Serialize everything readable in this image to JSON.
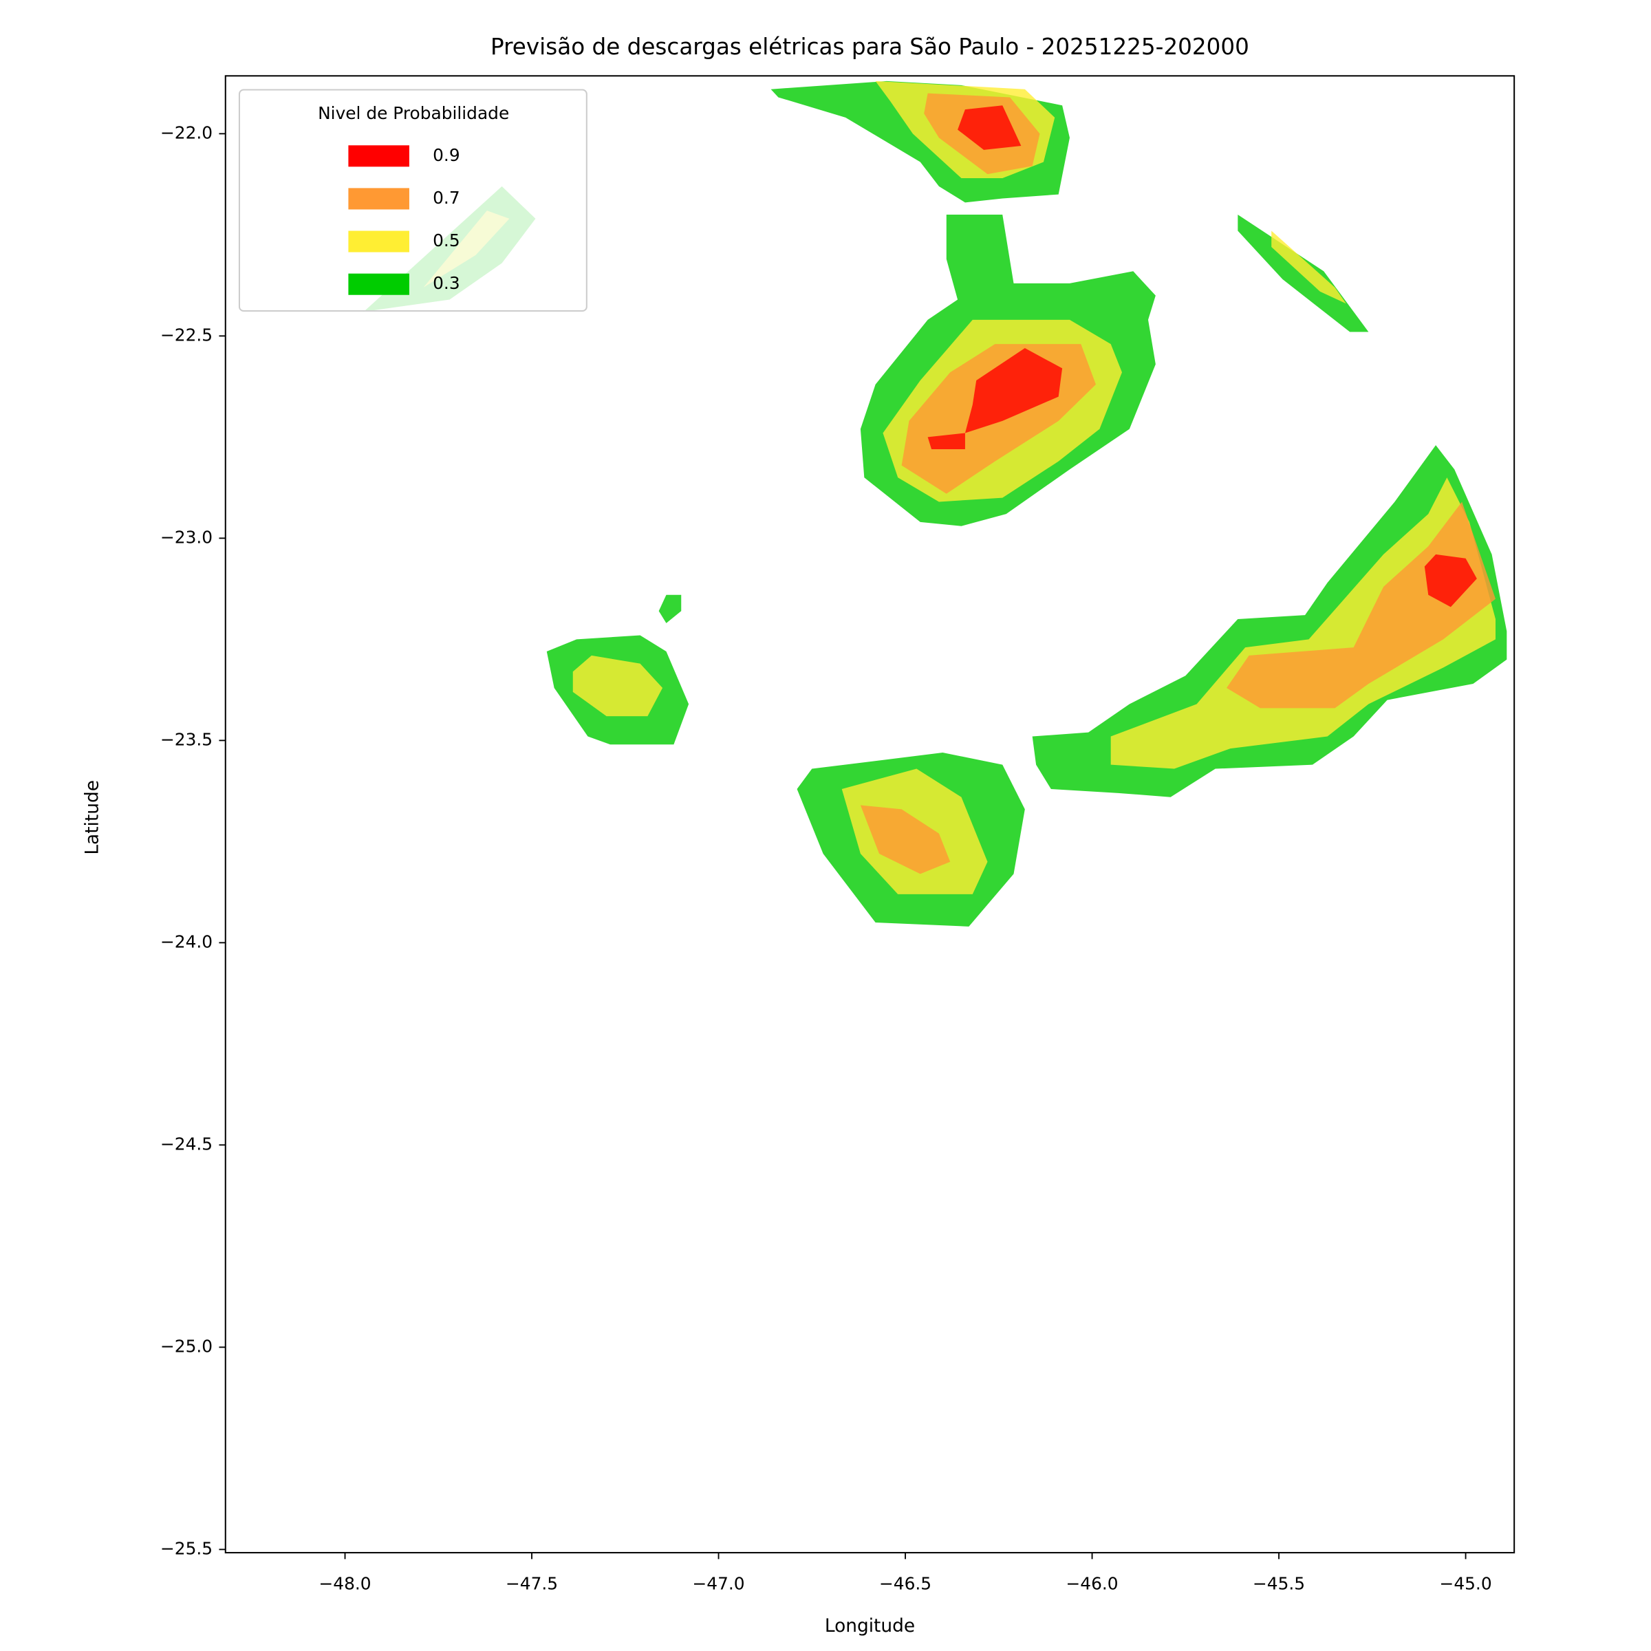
{
  "chart_data": {
    "type": "contour",
    "title": "Previsão de descargas elétricas para São Paulo - 20251225-202000",
    "xlabel": "Longitude",
    "ylabel": "Latitude",
    "xlim": [
      -48.32,
      -44.87
    ],
    "ylim": [
      -25.508,
      -21.857
    ],
    "xticks": [
      {
        "value": -48.0,
        "label": "−48.0"
      },
      {
        "value": -47.5,
        "label": "−47.5"
      },
      {
        "value": -47.0,
        "label": "−47.0"
      },
      {
        "value": -46.5,
        "label": "−46.5"
      },
      {
        "value": -46.0,
        "label": "−46.0"
      },
      {
        "value": -45.5,
        "label": "−45.5"
      },
      {
        "value": -45.0,
        "label": "−45.0"
      }
    ],
    "yticks": [
      {
        "value": -22.0,
        "label": "−22.0"
      },
      {
        "value": -22.5,
        "label": "−22.5"
      },
      {
        "value": -23.0,
        "label": "−23.0"
      },
      {
        "value": -23.5,
        "label": "−23.5"
      },
      {
        "value": -24.0,
        "label": "−24.0"
      },
      {
        "value": -24.5,
        "label": "−24.5"
      },
      {
        "value": -25.0,
        "label": "−25.0"
      },
      {
        "value": -25.5,
        "label": "−25.5"
      }
    ],
    "legend": {
      "title": "Nivel de Probabilidade",
      "levels": [
        0.9,
        0.7,
        0.5,
        0.3
      ],
      "colors": [
        "#ff0000",
        "#ff9933",
        "#ffee33",
        "#00cc00"
      ],
      "location": "upper left"
    },
    "regions": [
      {
        "level": 0.3,
        "polygon": [
          [
            -47.95,
            -22.44
          ],
          [
            -47.58,
            -22.13
          ],
          [
            -47.49,
            -22.21
          ],
          [
            -47.58,
            -22.32
          ],
          [
            -47.72,
            -22.41
          ]
        ]
      },
      {
        "level": 0.5,
        "polygon": [
          [
            -47.79,
            -22.38
          ],
          [
            -47.62,
            -22.19
          ],
          [
            -47.56,
            -22.21
          ],
          [
            -47.65,
            -22.3
          ]
        ]
      },
      {
        "level": 0.3,
        "polygon": [
          [
            -46.86,
            -21.89
          ],
          [
            -46.55,
            -21.87
          ],
          [
            -46.35,
            -21.88
          ],
          [
            -46.08,
            -21.93
          ],
          [
            -46.06,
            -22.01
          ],
          [
            -46.09,
            -22.15
          ],
          [
            -46.24,
            -22.16
          ],
          [
            -46.34,
            -22.17
          ],
          [
            -46.41,
            -22.13
          ],
          [
            -46.46,
            -22.07
          ],
          [
            -46.66,
            -21.96
          ],
          [
            -46.84,
            -21.91
          ]
        ]
      },
      {
        "level": 0.5,
        "polygon": [
          [
            -46.58,
            -21.87
          ],
          [
            -46.18,
            -21.89
          ],
          [
            -46.1,
            -21.96
          ],
          [
            -46.13,
            -22.07
          ],
          [
            -46.24,
            -22.11
          ],
          [
            -46.35,
            -22.11
          ],
          [
            -46.48,
            -22.0
          ],
          [
            -46.54,
            -21.92
          ]
        ]
      },
      {
        "level": 0.7,
        "polygon": [
          [
            -46.44,
            -21.9
          ],
          [
            -46.22,
            -21.91
          ],
          [
            -46.14,
            -22.0
          ],
          [
            -46.16,
            -22.08
          ],
          [
            -46.28,
            -22.1
          ],
          [
            -46.41,
            -22.01
          ],
          [
            -46.45,
            -21.95
          ]
        ]
      },
      {
        "level": 0.9,
        "polygon": [
          [
            -46.34,
            -21.94
          ],
          [
            -46.24,
            -21.93
          ],
          [
            -46.19,
            -22.03
          ],
          [
            -46.29,
            -22.04
          ],
          [
            -46.36,
            -21.99
          ]
        ]
      },
      {
        "level": 0.3,
        "polygon": [
          [
            -46.39,
            -22.2
          ],
          [
            -46.24,
            -22.2
          ],
          [
            -46.21,
            -22.37
          ],
          [
            -46.06,
            -22.37
          ],
          [
            -45.89,
            -22.34
          ],
          [
            -45.83,
            -22.4
          ],
          [
            -45.85,
            -22.46
          ],
          [
            -45.83,
            -22.57
          ],
          [
            -45.9,
            -22.73
          ],
          [
            -46.06,
            -22.83
          ],
          [
            -46.23,
            -22.94
          ],
          [
            -46.35,
            -22.97
          ],
          [
            -46.46,
            -22.96
          ],
          [
            -46.61,
            -22.85
          ],
          [
            -46.62,
            -22.73
          ],
          [
            -46.58,
            -22.62
          ],
          [
            -46.44,
            -22.46
          ],
          [
            -46.36,
            -22.41
          ],
          [
            -46.39,
            -22.31
          ]
        ]
      },
      {
        "level": 0.5,
        "polygon": [
          [
            -46.32,
            -22.46
          ],
          [
            -46.06,
            -22.46
          ],
          [
            -45.95,
            -22.52
          ],
          [
            -45.92,
            -22.59
          ],
          [
            -45.98,
            -22.73
          ],
          [
            -46.09,
            -22.81
          ],
          [
            -46.24,
            -22.9
          ],
          [
            -46.41,
            -22.91
          ],
          [
            -46.52,
            -22.85
          ],
          [
            -46.56,
            -22.74
          ],
          [
            -46.46,
            -22.61
          ]
        ]
      },
      {
        "level": 0.7,
        "polygon": [
          [
            -46.26,
            -22.52
          ],
          [
            -46.03,
            -22.52
          ],
          [
            -45.99,
            -22.62
          ],
          [
            -46.09,
            -22.71
          ],
          [
            -46.26,
            -22.81
          ],
          [
            -46.39,
            -22.89
          ],
          [
            -46.51,
            -22.82
          ],
          [
            -46.49,
            -22.71
          ],
          [
            -46.38,
            -22.59
          ]
        ]
      },
      {
        "level": 0.9,
        "polygon": [
          [
            -46.31,
            -22.61
          ],
          [
            -46.18,
            -22.53
          ],
          [
            -46.08,
            -22.58
          ],
          [
            -46.09,
            -22.65
          ],
          [
            -46.24,
            -22.71
          ],
          [
            -46.34,
            -22.74
          ],
          [
            -46.32,
            -22.67
          ]
        ]
      },
      {
        "level": 0.9,
        "polygon": [
          [
            -46.44,
            -22.75
          ],
          [
            -46.34,
            -22.74
          ],
          [
            -46.34,
            -22.78
          ],
          [
            -46.43,
            -22.78
          ]
        ]
      },
      {
        "level": 0.3,
        "polygon": [
          [
            -45.08,
            -22.77
          ],
          [
            -45.03,
            -22.83
          ],
          [
            -44.93,
            -23.04
          ],
          [
            -44.89,
            -23.23
          ],
          [
            -44.89,
            -23.3
          ],
          [
            -44.98,
            -23.36
          ],
          [
            -45.21,
            -23.4
          ],
          [
            -45.3,
            -23.49
          ],
          [
            -45.41,
            -23.56
          ],
          [
            -45.67,
            -23.57
          ],
          [
            -45.79,
            -23.64
          ],
          [
            -45.93,
            -23.63
          ],
          [
            -46.11,
            -23.62
          ],
          [
            -46.15,
            -23.56
          ],
          [
            -46.16,
            -23.49
          ],
          [
            -46.01,
            -23.48
          ],
          [
            -45.9,
            -23.41
          ],
          [
            -45.75,
            -23.34
          ],
          [
            -45.61,
            -23.2
          ],
          [
            -45.43,
            -23.19
          ],
          [
            -45.37,
            -23.11
          ],
          [
            -45.19,
            -22.91
          ]
        ]
      },
      {
        "level": 0.5,
        "polygon": [
          [
            -45.05,
            -22.85
          ],
          [
            -44.99,
            -22.96
          ],
          [
            -44.92,
            -23.2
          ],
          [
            -44.92,
            -23.25
          ],
          [
            -45.06,
            -23.32
          ],
          [
            -45.26,
            -23.41
          ],
          [
            -45.37,
            -23.49
          ],
          [
            -45.63,
            -23.52
          ],
          [
            -45.78,
            -23.57
          ],
          [
            -45.95,
            -23.56
          ],
          [
            -45.95,
            -23.49
          ],
          [
            -45.72,
            -23.41
          ],
          [
            -45.59,
            -23.27
          ],
          [
            -45.42,
            -23.25
          ],
          [
            -45.22,
            -23.04
          ],
          [
            -45.1,
            -22.94
          ]
        ]
      },
      {
        "level": 0.7,
        "polygon": [
          [
            -45.01,
            -22.91
          ],
          [
            -44.92,
            -23.15
          ],
          [
            -45.06,
            -23.25
          ],
          [
            -45.26,
            -23.36
          ],
          [
            -45.35,
            -23.42
          ],
          [
            -45.55,
            -23.42
          ],
          [
            -45.64,
            -23.37
          ],
          [
            -45.58,
            -23.29
          ],
          [
            -45.3,
            -23.27
          ],
          [
            -45.22,
            -23.12
          ],
          [
            -45.1,
            -23.02
          ]
        ]
      },
      {
        "level": 0.9,
        "polygon": [
          [
            -45.08,
            -23.04
          ],
          [
            -45.0,
            -23.05
          ],
          [
            -44.97,
            -23.1
          ],
          [
            -45.04,
            -23.17
          ],
          [
            -45.1,
            -23.14
          ],
          [
            -45.11,
            -23.07
          ]
        ]
      },
      {
        "level": 0.3,
        "polygon": [
          [
            -45.61,
            -22.2
          ],
          [
            -45.38,
            -22.34
          ],
          [
            -45.26,
            -22.49
          ],
          [
            -45.31,
            -22.49
          ],
          [
            -45.49,
            -22.36
          ],
          [
            -45.61,
            -22.24
          ]
        ]
      },
      {
        "level": 0.5,
        "polygon": [
          [
            -45.52,
            -22.24
          ],
          [
            -45.35,
            -22.38
          ],
          [
            -45.32,
            -22.42
          ],
          [
            -45.39,
            -22.39
          ],
          [
            -45.52,
            -22.28
          ]
        ]
      },
      {
        "level": 0.3,
        "polygon": [
          [
            -47.46,
            -23.28
          ],
          [
            -47.38,
            -23.25
          ],
          [
            -47.21,
            -23.24
          ],
          [
            -47.14,
            -23.28
          ],
          [
            -47.08,
            -23.41
          ],
          [
            -47.12,
            -23.51
          ],
          [
            -47.29,
            -23.51
          ],
          [
            -47.35,
            -23.49
          ],
          [
            -47.44,
            -23.37
          ]
        ]
      },
      {
        "level": 0.5,
        "polygon": [
          [
            -47.39,
            -23.33
          ],
          [
            -47.34,
            -23.29
          ],
          [
            -47.21,
            -23.31
          ],
          [
            -47.15,
            -23.37
          ],
          [
            -47.19,
            -23.44
          ],
          [
            -47.3,
            -23.44
          ],
          [
            -47.39,
            -23.38
          ]
        ]
      },
      {
        "level": 0.3,
        "polygon": [
          [
            -47.14,
            -23.14
          ],
          [
            -47.1,
            -23.14
          ],
          [
            -47.1,
            -23.18
          ],
          [
            -47.14,
            -23.21
          ],
          [
            -47.16,
            -23.18
          ]
        ]
      },
      {
        "level": 0.3,
        "polygon": [
          [
            -46.79,
            -23.62
          ],
          [
            -46.75,
            -23.57
          ],
          [
            -46.4,
            -23.53
          ],
          [
            -46.24,
            -23.56
          ],
          [
            -46.18,
            -23.67
          ],
          [
            -46.21,
            -23.83
          ],
          [
            -46.33,
            -23.96
          ],
          [
            -46.58,
            -23.95
          ],
          [
            -46.72,
            -23.78
          ]
        ]
      },
      {
        "level": 0.5,
        "polygon": [
          [
            -46.67,
            -23.62
          ],
          [
            -46.47,
            -23.57
          ],
          [
            -46.35,
            -23.64
          ],
          [
            -46.28,
            -23.8
          ],
          [
            -46.32,
            -23.88
          ],
          [
            -46.52,
            -23.88
          ],
          [
            -46.62,
            -23.78
          ]
        ]
      },
      {
        "level": 0.7,
        "polygon": [
          [
            -46.62,
            -23.66
          ],
          [
            -46.51,
            -23.67
          ],
          [
            -46.41,
            -23.73
          ],
          [
            -46.38,
            -23.8
          ],
          [
            -46.46,
            -23.83
          ],
          [
            -46.57,
            -23.78
          ]
        ]
      }
    ]
  }
}
